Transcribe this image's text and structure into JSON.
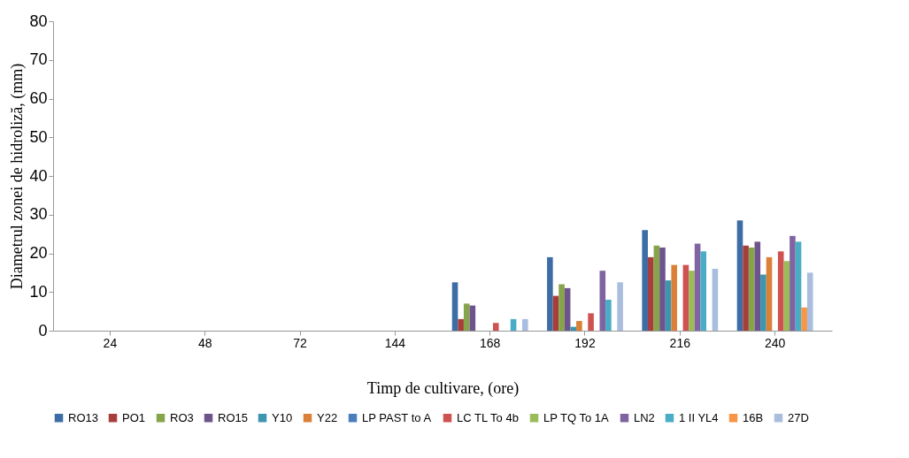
{
  "chart_data": {
    "type": "bar",
    "xlabel": "Timp de cultivare, (ore)",
    "ylabel": "Diametrul zonei de hidroliză, (mm)",
    "categories": [
      "24",
      "48",
      "72",
      "144",
      "168",
      "192",
      "216",
      "240"
    ],
    "ylim": [
      0,
      80
    ],
    "yticks": [
      0,
      10,
      20,
      30,
      40,
      50,
      60,
      70,
      80
    ],
    "grid": false,
    "legend": "bottom",
    "series": [
      {
        "name": "RO13",
        "color": "#3c6ea5",
        "values": [
          0,
          0,
          0,
          0,
          12.5,
          19,
          26,
          28.5
        ]
      },
      {
        "name": "PO1",
        "color": "#a83e3b",
        "values": [
          0,
          0,
          0,
          0,
          3,
          9,
          19,
          22
        ]
      },
      {
        "name": "RO3",
        "color": "#86a44a",
        "values": [
          0,
          0,
          0,
          0,
          7,
          12,
          22,
          21.5
        ]
      },
      {
        "name": "RO15",
        "color": "#6e548d",
        "values": [
          0,
          0,
          0,
          0,
          6.5,
          11,
          21.5,
          23
        ]
      },
      {
        "name": "Y10",
        "color": "#3d96ae",
        "values": [
          0,
          0,
          0,
          0,
          0,
          1,
          13,
          14.5
        ]
      },
      {
        "name": "Y22",
        "color": "#da8137",
        "values": [
          0,
          0,
          0,
          0,
          0,
          2.5,
          17,
          19
        ]
      },
      {
        "name": "LP PAST to A",
        "color": "#4a7ebb",
        "values": [
          0,
          0,
          0,
          0,
          0,
          0,
          0,
          0
        ]
      },
      {
        "name": "LC TL To 4b",
        "color": "#ce5250",
        "values": [
          0,
          0,
          0,
          0,
          2,
          4.5,
          17,
          20.5
        ]
      },
      {
        "name": "LP TQ To 1A",
        "color": "#9bbb59",
        "values": [
          0,
          0,
          0,
          0,
          0,
          0,
          15.5,
          18
        ]
      },
      {
        "name": "LN2",
        "color": "#8064a2",
        "values": [
          0,
          0,
          0,
          0,
          0,
          15.5,
          22.5,
          24.5
        ]
      },
      {
        "name": "1 II YL4",
        "color": "#4bacc6",
        "values": [
          0,
          0,
          0,
          0,
          3,
          8,
          20.5,
          23
        ]
      },
      {
        "name": "16B",
        "color": "#f79646",
        "values": [
          0,
          0,
          0,
          0,
          0,
          0,
          0,
          6
        ]
      },
      {
        "name": "27D",
        "color": "#a9bedf",
        "values": [
          0,
          0,
          0,
          0,
          3,
          12.5,
          16,
          15
        ]
      }
    ]
  }
}
